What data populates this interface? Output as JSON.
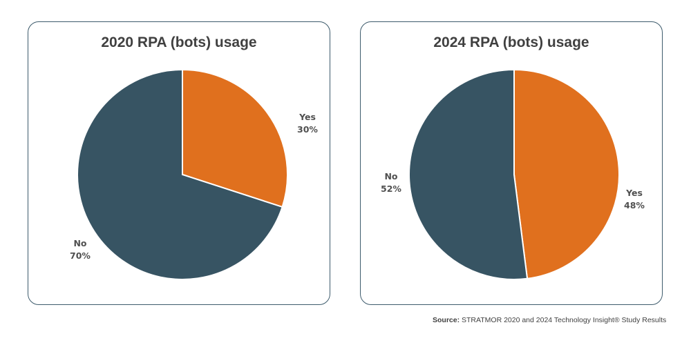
{
  "chart_data": [
    {
      "type": "pie",
      "title": "2020 RPA (bots) usage",
      "categories": [
        "Yes",
        "No"
      ],
      "values": [
        30,
        70
      ],
      "labels": [
        {
          "name": "Yes",
          "value": "30%"
        },
        {
          "name": "No",
          "value": "70%"
        }
      ],
      "colors": [
        "#e0701e",
        "#375463"
      ],
      "start_angle": "12 o'clock, clockwise",
      "legend": "none"
    },
    {
      "type": "pie",
      "title": "2024 RPA (bots) usage",
      "categories": [
        "Yes",
        "No"
      ],
      "values": [
        48,
        52
      ],
      "labels": [
        {
          "name": "Yes",
          "value": "48%"
        },
        {
          "name": "No",
          "value": "52%"
        }
      ],
      "colors": [
        "#e0701e",
        "#375463"
      ],
      "start_angle": "12 o'clock, clockwise",
      "legend": "none"
    }
  ],
  "footer": {
    "source_label": "Source:",
    "source_text": " STRATMOR 2020 and 2024 Technology Insight® Study Results"
  }
}
